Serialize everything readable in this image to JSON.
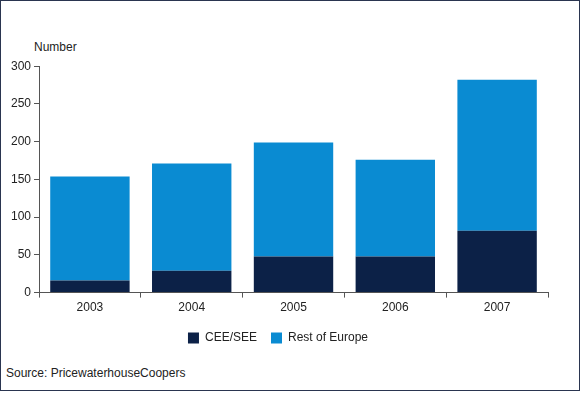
{
  "chart_data": {
    "type": "bar",
    "y_label": "Number",
    "annotations": [
      "Source: PricewaterhouseCoopers"
    ],
    "categories": [
      "2003",
      "2004",
      "2005",
      "2006",
      "2007"
    ],
    "series": [
      {
        "name": "CEE/SEE",
        "color": "#0c2147",
        "values": [
          16,
          29,
          48,
          48,
          82
        ]
      },
      {
        "name": "Rest of Europe",
        "color": "#0a8bd2",
        "values": [
          138,
          142,
          151,
          128,
          200
        ]
      }
    ],
    "stacked": true,
    "ylim": [
      0,
      300
    ],
    "yticks": [
      0,
      50,
      100,
      150,
      200,
      250,
      300
    ],
    "grid": false,
    "legend": "bottom"
  }
}
